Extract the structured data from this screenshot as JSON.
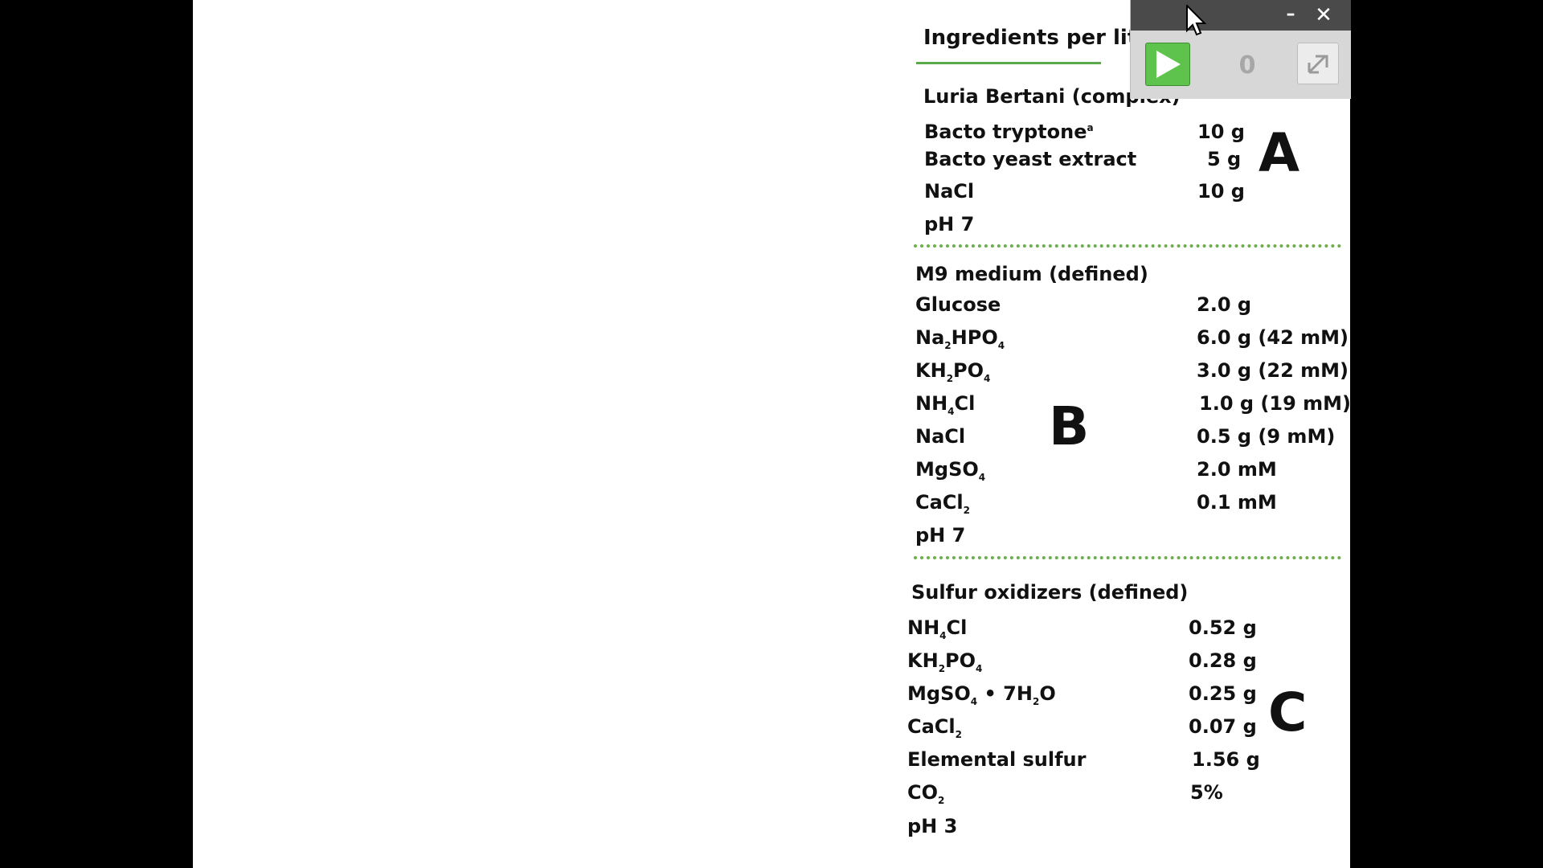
{
  "slide": {
    "heading": "Ingredients per liter",
    "labels": {
      "a": "A",
      "b": "B",
      "c": "C"
    },
    "luria": {
      "title": "Luria Bertani (complex)",
      "rows": [
        {
          "name": "Bacto tryptone",
          "sup": "a",
          "value": "10 g"
        },
        {
          "name": "Bacto yeast extract",
          "value": "5 g"
        },
        {
          "name": "NaCl",
          "value": "10 g"
        },
        {
          "name": "pH 7",
          "value": ""
        }
      ]
    },
    "m9": {
      "title": "M9 medium (defined)",
      "rows": [
        {
          "name": "Glucose",
          "value": "2.0 g"
        },
        {
          "name": "Na2HPO4",
          "value": "6.0 g (42 mM)"
        },
        {
          "name": "KH2PO4",
          "value": "3.0 g (22 mM)"
        },
        {
          "name": "NH4Cl",
          "value": "1.0 g (19 mM)"
        },
        {
          "name": "NaCl",
          "value": "0.5 g (9 mM)"
        },
        {
          "name": "MgSO4",
          "value": "2.0 mM"
        },
        {
          "name": "CaCl2",
          "value": "0.1 mM"
        },
        {
          "name": "pH 7",
          "value": ""
        }
      ]
    },
    "sulfur": {
      "title": "Sulfur oxidizers (defined)",
      "rows": [
        {
          "name": "NH4Cl",
          "value": "0.52 g"
        },
        {
          "name": "KH2PO4",
          "value": "0.28 g"
        },
        {
          "name": "MgSO4 • 7H2O",
          "value": "0.25 g"
        },
        {
          "name": "CaCl2",
          "value": "0.07 g"
        },
        {
          "name": "Elemental sulfur",
          "value": "1.56 g"
        },
        {
          "name": "CO2",
          "value": "5%"
        },
        {
          "name": "pH 3",
          "value": ""
        }
      ]
    }
  },
  "recorder": {
    "minimize": "–",
    "close": "✕",
    "count": "0",
    "play_icon": "play-icon",
    "expand_icon": "expand-icon"
  },
  "colors": {
    "divider": "#5aa94a",
    "play_button": "#5ec34c",
    "titlebar": "#4a4a4a"
  }
}
